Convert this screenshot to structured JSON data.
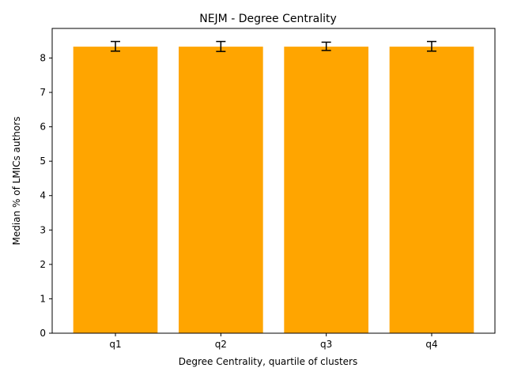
{
  "chart_data": {
    "type": "bar",
    "title": "NEJM - Degree Centrality",
    "xlabel": "Degree Centrality, quartile of clusters",
    "ylabel": "Median % of LMICs authors",
    "categories": [
      "q1",
      "q2",
      "q3",
      "q4"
    ],
    "values": [
      8.33,
      8.33,
      8.33,
      8.33
    ],
    "error_bars": [
      {
        "low": 8.2,
        "high": 8.48
      },
      {
        "low": 8.19,
        "high": 8.48
      },
      {
        "low": 8.22,
        "high": 8.46
      },
      {
        "low": 8.2,
        "high": 8.48
      }
    ],
    "ylim": [
      0,
      8.86
    ],
    "yticks": [
      0,
      1,
      2,
      3,
      4,
      5,
      6,
      7,
      8
    ],
    "bar_color": "#ffa500",
    "errorbar_color": "#000000",
    "grid": false,
    "legend": "none"
  }
}
